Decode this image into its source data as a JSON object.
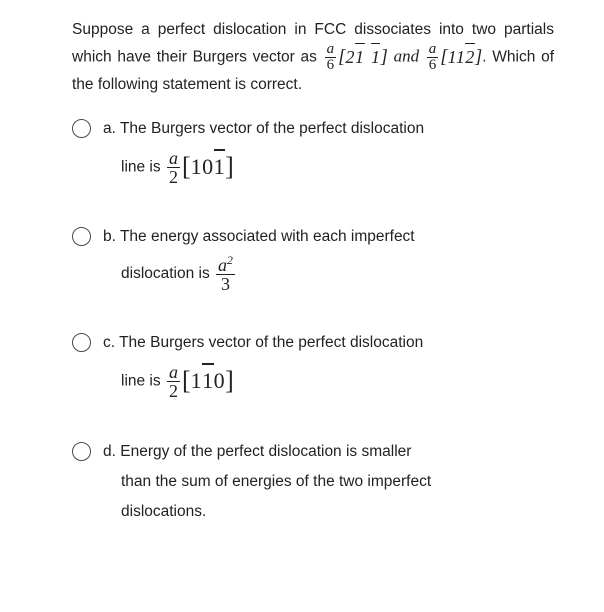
{
  "question": {
    "part1": "Suppose a perfect dislocation in FCC dissociates into two partials which have their Burgers vector as ",
    "frac1_num": "a",
    "frac1_den": "6",
    "bv1_a": "2",
    "bv1_b": "1",
    "bv1_c": "1",
    "and": " and ",
    "frac2_num": "a",
    "frac2_den": "6",
    "bv2_a": "1",
    "bv2_b": "1",
    "bv2_c": "2",
    "part2": ". Which of the following statement is correct."
  },
  "options": {
    "a": {
      "letter": "a.",
      "line1": " The Burgers vector of the perfect dislocation",
      "line2_pre": "line is ",
      "frac_num": "a",
      "frac_den": "2",
      "m1": "1",
      "m2": "0",
      "m3": "1"
    },
    "b": {
      "letter": "b.",
      "line1": " The energy associated with each imperfect",
      "line2_pre": "dislocation is ",
      "frac_num_base": "a",
      "frac_num_exp": "2",
      "frac_den": "3"
    },
    "c": {
      "letter": "c.",
      "line1": " The Burgers vector of the perfect dislocation",
      "line2_pre": "line is ",
      "frac_num": "a",
      "frac_den": "2",
      "m1": "1",
      "m2": "1",
      "m3": "0"
    },
    "d": {
      "letter": "d.",
      "line1": " Energy of the perfect dislocation is smaller",
      "line2": "than the sum of energies of the two imperfect",
      "line3": "dislocations."
    }
  }
}
